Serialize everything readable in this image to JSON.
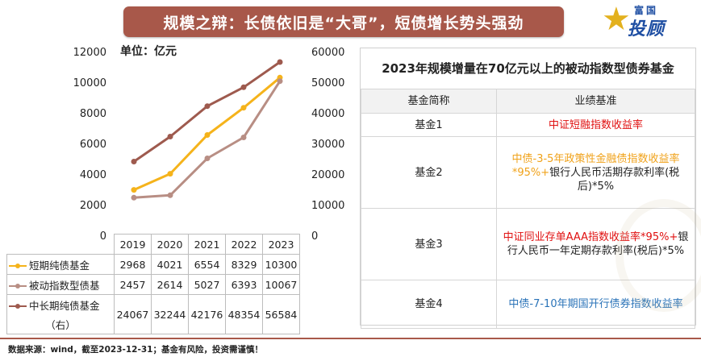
{
  "title": "规模之辩：长债依旧是“大哥”，短债增长势头强劲",
  "logo": {
    "top": "富国",
    "main": "投顾",
    "icon": "star-icon"
  },
  "chart_data": {
    "type": "line",
    "unit": "单位：亿元",
    "categories": [
      "2019",
      "2020",
      "2021",
      "2022",
      "2023"
    ],
    "left_axis": {
      "ticks": [
        "12000",
        "10000",
        "8000",
        "6000",
        "4000",
        "2000",
        "0"
      ],
      "ylim": [
        0,
        12000
      ]
    },
    "right_axis": {
      "ticks": [
        "60000",
        "50000",
        "40000",
        "30000",
        "20000",
        "10000",
        "0"
      ],
      "ylim": [
        0,
        60000
      ]
    },
    "grid": false,
    "legend_placement": "bottom-table",
    "series": [
      {
        "name": "短期纯债基金",
        "axis": "left",
        "color": "#f5b31b",
        "values": [
          2968,
          4021,
          6554,
          8329,
          10300
        ],
        "labels": [
          "2968",
          "4021",
          "6554",
          "8329",
          "10300"
        ]
      },
      {
        "name": "被动指数型债基",
        "axis": "left",
        "color": "#b88e84",
        "values": [
          2457,
          2614,
          5027,
          6393,
          10067
        ],
        "labels": [
          "2457",
          "2614",
          "5027",
          "6393",
          "10067"
        ]
      },
      {
        "name": "中长期纯债基金",
        "name_line2": "（右）",
        "axis": "right",
        "color": "#9e5a4e",
        "values": [
          24067,
          32244,
          42176,
          48354,
          56584
        ],
        "labels": [
          "24067",
          "32244",
          "42176",
          "48354",
          "56584"
        ]
      }
    ]
  },
  "panel": {
    "title": "2023年规模增量在70亿元以上的被动指数型债券基金",
    "headers": [
      "基金简称",
      "业绩基准"
    ],
    "rows": [
      {
        "name": "基金1",
        "parts": [
          {
            "text": "中证短融指数收益率",
            "color": "red"
          }
        ]
      },
      {
        "name": "基金2",
        "parts": [
          {
            "text": "中债-3-5年政策性金融债指数收益率*95%+",
            "color": "orange"
          },
          {
            "text": "银行人民币活期存款利率(税后)*5%",
            "color": ""
          }
        ]
      },
      {
        "name": "基金3",
        "parts": [
          {
            "text": "中证同业存单AAA指数收益率*95%+",
            "color": "red"
          },
          {
            "text": "银行人民币一年定期存款利率(税后)*5%",
            "color": ""
          }
        ]
      },
      {
        "name": "基金4",
        "parts": [
          {
            "text": "中债-7-10年期国开行债券指数收益率",
            "color": "blue"
          }
        ]
      }
    ]
  },
  "footer": {
    "source": "数据来源：wind，截至2023-12-31；基金有风险，投资需谨慎！"
  }
}
